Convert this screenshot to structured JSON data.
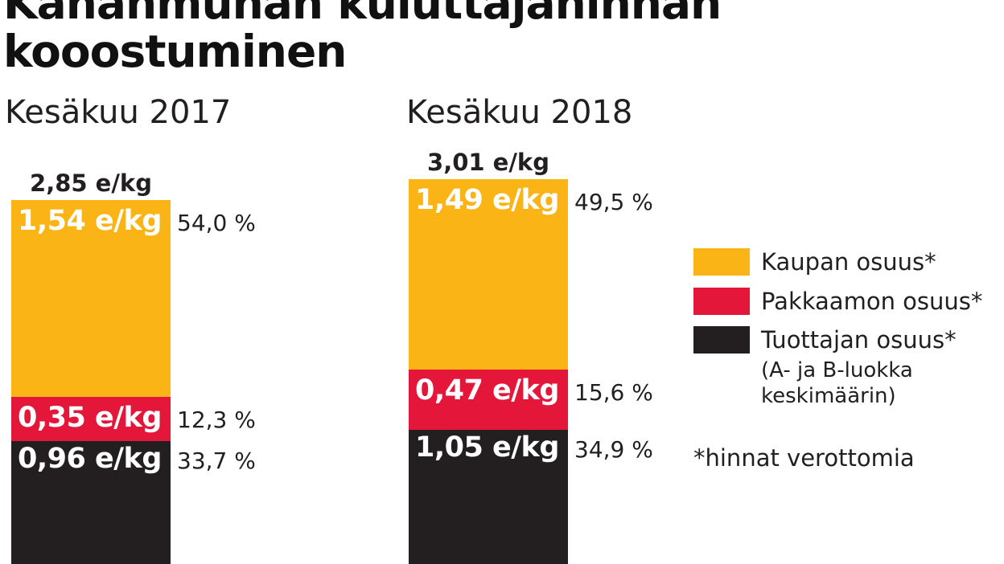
{
  "title": {
    "line1": "Kananmunan kuluttajahinnan",
    "line2": "kooostuminen"
  },
  "chart_data": {
    "type": "bar",
    "stacked": true,
    "unit": "e/kg",
    "categories": [
      "Kesäkuu 2017",
      "Kesäkuu 2018"
    ],
    "totals": [
      2.85,
      3.01
    ],
    "total_labels": [
      "2,85 e/kg",
      "3,01 e/kg"
    ],
    "series": [
      {
        "name": "Tuottajan osuus*",
        "color": "#231f20",
        "values": [
          0.96,
          1.05
        ],
        "value_labels": [
          "0,96 e/kg",
          "1,05 e/kg"
        ],
        "percent_labels": [
          "33,7 %",
          "34,9 %"
        ]
      },
      {
        "name": "Pakkaamon osuus*",
        "color": "#e4163a",
        "values": [
          0.35,
          0.47
        ],
        "value_labels": [
          "0,35 e/kg",
          "0,47 e/kg"
        ],
        "percent_labels": [
          "12,3 %",
          "15,6 %"
        ]
      },
      {
        "name": "Kaupan osuus*",
        "color": "#fbb416",
        "values": [
          1.54,
          1.49
        ],
        "value_labels": [
          "1,54 e/kg",
          "1,49 e/kg"
        ],
        "percent_labels": [
          "54,0 %",
          "49,5 %"
        ]
      }
    ],
    "legend": {
      "position": "right",
      "items": [
        {
          "label": "Kaupan osuus*",
          "color": "#fbb416"
        },
        {
          "label": "Pakkaamon osuus*",
          "color": "#e4163a"
        },
        {
          "label": "Tuottajan osuus*",
          "color": "#231f20",
          "note_line1": "(A- ja B-luokka",
          "note_line2": "keskimäärin)"
        }
      ]
    },
    "footnote": "*hinnat verottomia",
    "grid": false
  }
}
